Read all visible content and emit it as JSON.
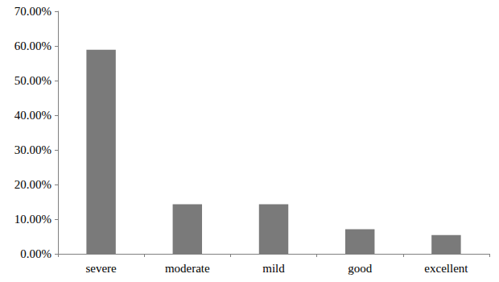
{
  "chart_data": {
    "type": "bar",
    "categories": [
      "severe",
      "moderate",
      "mild",
      "good",
      "excellent"
    ],
    "values": [
      58.9,
      14.3,
      14.3,
      7.1,
      5.4
    ],
    "color": "#7a7a7a",
    "ylim": [
      0,
      70
    ],
    "yticks": [
      {
        "value": 0,
        "label": "0.00%"
      },
      {
        "value": 10,
        "label": "10.00%"
      },
      {
        "value": 20,
        "label": "20.00%"
      },
      {
        "value": 30,
        "label": "30.00%"
      },
      {
        "value": 40,
        "label": "40.00%"
      },
      {
        "value": 50,
        "label": "50.00%"
      },
      {
        "value": 60,
        "label": "60.00%"
      },
      {
        "value": 70,
        "label": "70.00%"
      }
    ],
    "grid": false
  }
}
